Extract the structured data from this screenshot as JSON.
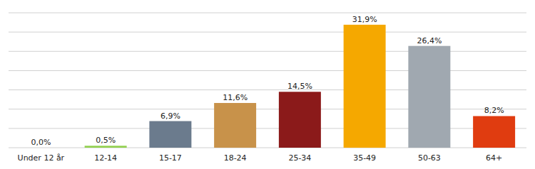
{
  "chart_data": {
    "type": "bar",
    "categories": [
      "Under 12 år",
      "12-14",
      "15-17",
      "18-24",
      "25-34",
      "35-49",
      "50-63",
      "64+"
    ],
    "values": [
      0.0,
      0.5,
      6.9,
      11.6,
      14.5,
      31.9,
      26.4,
      8.2
    ],
    "value_labels": [
      "0,0%",
      "0,5%",
      "6,9%",
      "11,6%",
      "14,5%",
      "31,9%",
      "26,4%",
      "8,2%"
    ],
    "colors": [
      "#92d050",
      "#92d050",
      "#6b7b8d",
      "#c8924a",
      "#8b1a1a",
      "#f5a800",
      "#a0a8b0",
      "#e03c10"
    ],
    "ylim": [
      0,
      35
    ],
    "yticks": [
      0,
      5,
      10,
      15,
      20,
      25,
      30,
      35
    ],
    "grid": true,
    "data_labels": true,
    "tick_labels": "x"
  }
}
